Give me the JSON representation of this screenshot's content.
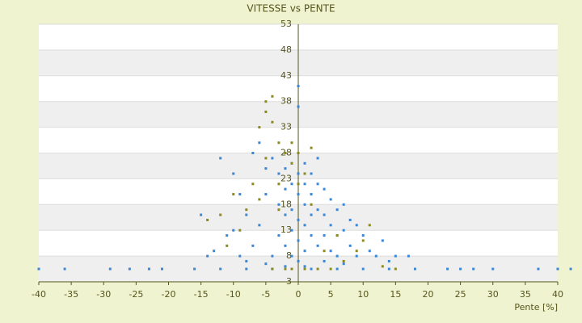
{
  "chart_data": {
    "type": "scatter",
    "title": "VITESSE vs PENTE",
    "x_label": "Pente [%]",
    "xlim": [
      -40,
      40
    ],
    "ylim": [
      3,
      53
    ],
    "xticks": [
      -40,
      -35,
      -30,
      -25,
      -20,
      -15,
      -10,
      -5,
      0,
      5,
      10,
      15,
      20,
      25,
      30,
      35,
      40
    ],
    "yticks": [
      3,
      8,
      13,
      18,
      23,
      28,
      33,
      38,
      43,
      48,
      53
    ],
    "grid": true,
    "series": [
      {
        "color": "#3a86d6",
        "x": [
          -40,
          -36,
          -29,
          -26,
          -23,
          -21,
          -16,
          -12,
          -8,
          -4,
          2,
          6,
          10,
          14,
          18,
          23,
          25,
          27,
          30,
          37,
          40,
          42,
          -12,
          -10,
          -9,
          -8,
          -11,
          -13,
          -14,
          -7,
          -6,
          -5,
          -5,
          -6,
          -7,
          -8,
          -4,
          -3,
          -3,
          -3,
          -4,
          -2,
          -2,
          -2,
          -2,
          -1,
          -1,
          -1,
          -1,
          -1,
          0,
          0,
          0,
          0,
          0,
          0,
          0,
          0,
          1,
          1,
          1,
          1,
          1,
          2,
          2,
          2,
          2,
          3,
          3,
          3,
          3,
          4,
          4,
          4,
          5,
          5,
          5,
          6,
          6,
          6,
          7,
          7,
          8,
          8,
          9,
          9,
          10,
          11,
          12,
          13,
          14,
          15,
          17,
          -15,
          -9,
          -10,
          4,
          7,
          -5,
          -2,
          1
        ],
        "values": [
          5.5,
          5.5,
          5.5,
          5.5,
          5.5,
          5.5,
          5.5,
          5.5,
          5.5,
          5.5,
          5.5,
          5.5,
          5.5,
          5.5,
          5.5,
          5.5,
          5.5,
          5.5,
          5.5,
          5.5,
          5.5,
          5.5,
          27,
          24,
          20,
          16,
          12,
          9,
          8,
          28,
          30,
          25,
          20,
          14,
          10,
          7,
          27,
          24,
          18,
          12,
          8,
          25,
          21,
          16,
          10,
          26,
          22,
          17,
          13,
          8,
          41,
          37,
          28,
          24,
          20,
          15,
          11,
          7,
          26,
          22,
          18,
          14,
          9,
          24,
          20,
          16,
          12,
          27,
          22,
          17,
          10,
          21,
          16,
          12,
          19,
          14,
          9,
          17,
          12,
          8,
          18,
          13,
          15,
          10,
          14,
          8,
          12,
          9,
          8,
          11,
          7,
          8,
          8,
          16,
          8,
          13,
          7,
          6.5,
          6.5,
          6,
          6
        ]
      },
      {
        "color": "#8a8a1c",
        "x": [
          -5,
          -4,
          -5,
          -6,
          -4,
          -3,
          -2,
          -5,
          -7,
          -8,
          -6,
          -3,
          -1,
          -1,
          0,
          1,
          2,
          -10,
          -12,
          -14,
          -4,
          -2,
          -1,
          1,
          3,
          5,
          7,
          9,
          10,
          11,
          6,
          4,
          -9,
          -11,
          0,
          2,
          -3,
          13,
          15
        ],
        "values": [
          38,
          39,
          36,
          33,
          34,
          30,
          28,
          27,
          22,
          17,
          19,
          22,
          26,
          30,
          28,
          24,
          29,
          20,
          16,
          15,
          5.5,
          5.5,
          5.5,
          5.5,
          5.5,
          5.5,
          7,
          9,
          11,
          14,
          12,
          9,
          13,
          10,
          22,
          18,
          17,
          6,
          5.5
        ]
      }
    ]
  }
}
